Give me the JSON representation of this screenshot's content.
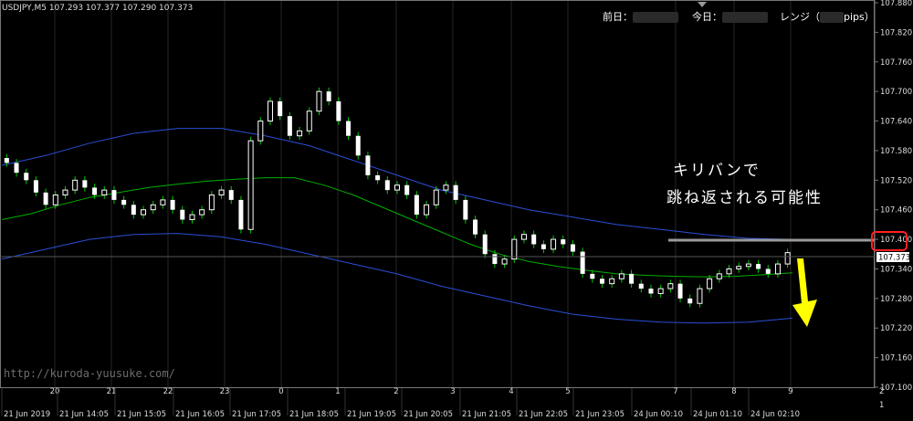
{
  "header": {
    "symbol_line": "USDJPY,M5  107.293 107.377 107.290 107.373",
    "prev_day_label": "前日：",
    "today_label": "今日：",
    "range_label": "レンジ（",
    "range_unit": "pips）"
  },
  "annotation": {
    "line1": "キリバンで",
    "line2": "跳ね返される可能性"
  },
  "watermark": "http://kuroda-yuusuke.com/",
  "price_axis": {
    "ticks": [
      "107.880",
      "107.820",
      "107.760",
      "107.700",
      "107.640",
      "107.580",
      "107.520",
      "107.460",
      "107.400",
      "107.340",
      "107.280",
      "107.220",
      "107.160",
      "107.100"
    ],
    "current_price": "107.373",
    "highlight_price": "107.400"
  },
  "time_axis": {
    "labels": [
      "21 Jun 2019",
      "21 Jun 14:05",
      "21 Jun 15:05",
      "21 Jun 16:05",
      "21 Jun 17:05",
      "21 Jun 18:05",
      "21 Jun 19:05",
      "21 Jun 20:05",
      "21 Jun 21:05",
      "21 Jun 22:05",
      "21 Jun 23:05",
      "24 Jun 00:10",
      "24 Jun 01:10",
      "24 Jun 02:10"
    ],
    "session_labels": [
      "20",
      "21",
      "22",
      "23",
      "0",
      "1",
      "2",
      "3",
      "4",
      "5",
      "7",
      "8",
      "9"
    ],
    "corner_labels": [
      "2",
      "1"
    ]
  },
  "colors": {
    "background": "#000000",
    "bull_candle": "#ffffff",
    "bear_candle": "#ffffff",
    "wick": "#00cc00",
    "moving_average": "#00b000",
    "bollinger_band": "#2a4fd6",
    "arrow": "#ffff00",
    "highlight_box": "#ff2020",
    "resistance_line": "#9a9a9a"
  },
  "chart_data": {
    "type": "candlestick",
    "symbol": "USDJPY,M5",
    "ylim": [
      107.1,
      107.88
    ],
    "closes": [
      107.555,
      107.535,
      107.52,
      107.495,
      107.47,
      107.49,
      107.5,
      107.52,
      107.505,
      107.49,
      107.5,
      107.48,
      107.47,
      107.45,
      107.46,
      107.47,
      107.48,
      107.46,
      107.44,
      107.45,
      107.46,
      107.49,
      107.5,
      107.48,
      107.42,
      107.6,
      107.64,
      107.68,
      107.65,
      107.61,
      107.62,
      107.66,
      107.7,
      107.68,
      107.64,
      107.61,
      107.57,
      107.53,
      107.52,
      107.5,
      107.51,
      107.49,
      107.45,
      107.47,
      107.5,
      107.51,
      107.48,
      107.44,
      107.41,
      107.37,
      107.35,
      107.36,
      107.4,
      107.41,
      107.39,
      107.38,
      107.4,
      107.39,
      107.375,
      107.33,
      107.32,
      107.31,
      107.32,
      107.33,
      107.31,
      107.3,
      107.29,
      107.3,
      107.31,
      107.28,
      107.27,
      107.3,
      107.32,
      107.33,
      107.34,
      107.345,
      107.35,
      107.34,
      107.33,
      107.35,
      107.373
    ],
    "ma": [
      107.44,
      107.452,
      107.47,
      107.485,
      107.495,
      107.505,
      107.512,
      107.518,
      107.522,
      107.525,
      107.525,
      107.51,
      107.49,
      107.465,
      107.44,
      107.415,
      107.39,
      107.37,
      107.355,
      107.345,
      107.337,
      107.33,
      107.327,
      107.325,
      107.324,
      107.325,
      107.328,
      107.332
    ],
    "bb_upper": [
      107.55,
      107.57,
      107.595,
      107.615,
      107.625,
      107.625,
      107.61,
      107.59,
      107.56,
      107.53,
      107.5,
      107.48,
      107.46,
      107.445,
      107.43,
      107.42,
      107.41,
      107.402,
      107.4
    ],
    "bb_lower": [
      107.36,
      107.38,
      107.4,
      107.41,
      107.412,
      107.405,
      107.39,
      107.37,
      107.35,
      107.33,
      107.305,
      107.285,
      107.265,
      107.248,
      107.238,
      107.232,
      107.23,
      107.232,
      107.24
    ]
  }
}
